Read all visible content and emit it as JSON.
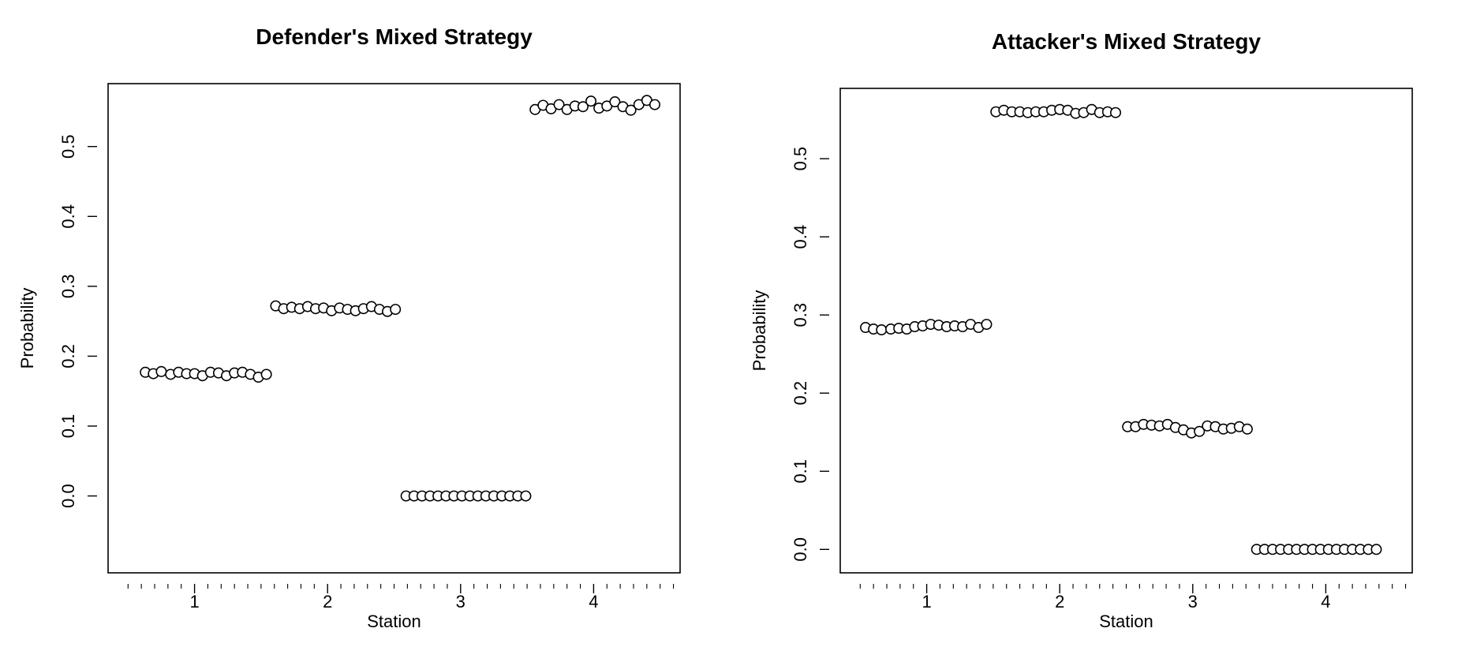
{
  "chart_data": [
    {
      "type": "scatter",
      "title": "Defender's Mixed Strategy",
      "xlabel": "Station",
      "ylabel": "Probability",
      "xlim": [
        0.35,
        4.65
      ],
      "ylim": [
        -0.11,
        0.59
      ],
      "x_ticks": [
        1,
        2,
        3,
        4
      ],
      "x_tick_labels": [
        "1",
        "2",
        "3",
        "4"
      ],
      "y_ticks": [
        0.0,
        0.1,
        0.2,
        0.3,
        0.4,
        0.5
      ],
      "y_tick_labels": [
        "0.0",
        "0.1",
        "0.2",
        "0.3",
        "0.4",
        "0.5"
      ],
      "marker": "open-circle",
      "series": [
        {
          "station": 1,
          "x": [
            0.63,
            0.69,
            0.75,
            0.82,
            0.88,
            0.94,
            1.0,
            1.06,
            1.12,
            1.18,
            1.24,
            1.3,
            1.36,
            1.42,
            1.48,
            1.54
          ],
          "y": [
            0.177,
            0.175,
            0.178,
            0.174,
            0.177,
            0.175,
            0.175,
            0.172,
            0.177,
            0.176,
            0.172,
            0.176,
            0.177,
            0.174,
            0.17,
            0.174
          ]
        },
        {
          "station": 2,
          "x": [
            1.61,
            1.67,
            1.73,
            1.79,
            1.85,
            1.91,
            1.97,
            2.03,
            2.09,
            2.15,
            2.21,
            2.27,
            2.33,
            2.39,
            2.45,
            2.51
          ],
          "y": [
            0.272,
            0.268,
            0.27,
            0.268,
            0.271,
            0.268,
            0.269,
            0.265,
            0.269,
            0.267,
            0.265,
            0.268,
            0.271,
            0.267,
            0.264,
            0.267
          ]
        },
        {
          "station": 3,
          "x": [
            2.59,
            2.65,
            2.71,
            2.77,
            2.83,
            2.89,
            2.95,
            3.01,
            3.07,
            3.13,
            3.19,
            3.25,
            3.31,
            3.37,
            3.43,
            3.49
          ],
          "y": [
            0.0,
            0.0,
            0.0,
            0.0,
            0.0,
            0.0,
            0.0,
            0.0,
            0.0,
            0.0,
            0.0,
            0.0,
            0.0,
            0.0,
            0.0,
            0.0
          ]
        },
        {
          "station": 4,
          "x": [
            3.56,
            3.62,
            3.68,
            3.74,
            3.8,
            3.86,
            3.92,
            3.98,
            4.04,
            4.1,
            4.16,
            4.22,
            4.28,
            4.34,
            4.4,
            4.46
          ],
          "y": [
            0.553,
            0.559,
            0.554,
            0.56,
            0.553,
            0.558,
            0.557,
            0.565,
            0.555,
            0.558,
            0.564,
            0.557,
            0.552,
            0.56,
            0.566,
            0.56
          ]
        }
      ]
    },
    {
      "type": "scatter",
      "title": "Attacker's Mixed Strategy",
      "xlabel": "Station",
      "ylabel": "Probability",
      "xlim": [
        0.35,
        4.65
      ],
      "ylim": [
        -0.03,
        0.59
      ],
      "x_ticks": [
        1,
        2,
        3,
        4
      ],
      "x_tick_labels": [
        "1",
        "2",
        "3",
        "4"
      ],
      "y_ticks": [
        0.0,
        0.1,
        0.2,
        0.3,
        0.4,
        0.5
      ],
      "y_tick_labels": [
        "0.0",
        "0.1",
        "0.2",
        "0.3",
        "0.4",
        "0.5"
      ],
      "marker": "open-circle",
      "series": [
        {
          "station": 1,
          "x": [
            0.54,
            0.6,
            0.66,
            0.73,
            0.79,
            0.85,
            0.91,
            0.97,
            1.03,
            1.09,
            1.15,
            1.21,
            1.27,
            1.33,
            1.39,
            1.45
          ],
          "y": [
            0.284,
            0.282,
            0.281,
            0.282,
            0.283,
            0.282,
            0.285,
            0.286,
            0.288,
            0.287,
            0.285,
            0.286,
            0.285,
            0.288,
            0.284,
            0.288
          ]
        },
        {
          "station": 2,
          "x": [
            1.52,
            1.58,
            1.64,
            1.7,
            1.76,
            1.82,
            1.88,
            1.94,
            2.0,
            2.06,
            2.12,
            2.18,
            2.24,
            2.3,
            2.36,
            2.42
          ],
          "y": [
            0.56,
            0.562,
            0.56,
            0.56,
            0.559,
            0.56,
            0.56,
            0.562,
            0.563,
            0.562,
            0.558,
            0.559,
            0.563,
            0.559,
            0.56,
            0.559
          ]
        },
        {
          "station": 3,
          "x": [
            2.51,
            2.57,
            2.63,
            2.69,
            2.75,
            2.81,
            2.87,
            2.93,
            2.99,
            3.05,
            3.11,
            3.17,
            3.23,
            3.29,
            3.35,
            3.41
          ],
          "y": [
            0.157,
            0.157,
            0.16,
            0.159,
            0.158,
            0.16,
            0.156,
            0.153,
            0.149,
            0.151,
            0.158,
            0.157,
            0.154,
            0.155,
            0.157,
            0.154
          ]
        },
        {
          "station": 4,
          "x": [
            3.48,
            3.54,
            3.6,
            3.66,
            3.72,
            3.78,
            3.84,
            3.9,
            3.96,
            4.02,
            4.08,
            4.14,
            4.2,
            4.26,
            4.32,
            4.38
          ],
          "y": [
            0.0,
            0.0,
            0.0,
            0.0,
            0.0,
            0.0,
            0.0,
            0.0,
            0.0,
            0.0,
            0.0,
            0.0,
            0.0,
            0.0,
            0.0,
            0.0
          ]
        }
      ]
    }
  ]
}
